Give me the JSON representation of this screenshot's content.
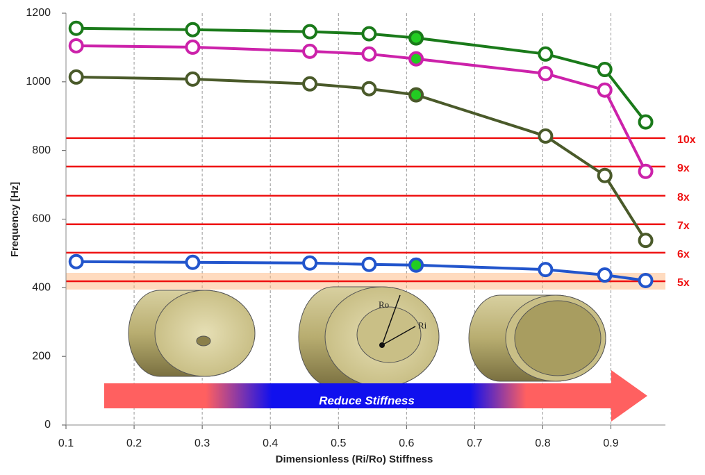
{
  "chart_data": {
    "type": "line",
    "x_label": "Dimensionless (Ri/Ro) Stiffness",
    "y_label": "Frequency [Hz]",
    "x": [
      0.115,
      0.286,
      0.458,
      0.545,
      0.614,
      0.804,
      0.891,
      0.951
    ],
    "series": [
      {
        "color": "#1a7a1a",
        "values": [
          1156,
          1152,
          1146,
          1140,
          1128,
          1081,
          1036,
          883
        ]
      },
      {
        "color": "#cc22aa",
        "values": [
          1105,
          1101,
          1089,
          1081,
          1067,
          1024,
          976,
          739
        ]
      },
      {
        "color": "#4a5a2a",
        "values": [
          1014,
          1008,
          994,
          980,
          962,
          842,
          727,
          538
        ]
      },
      {
        "color": "#2255cc",
        "values": [
          476,
          474,
          472,
          468,
          466,
          453,
          437,
          421
        ]
      }
    ],
    "reference_lines": [
      {
        "label": "10x",
        "value": 836
      },
      {
        "label": "9x",
        "value": 753
      },
      {
        "label": "8x",
        "value": 668
      },
      {
        "label": "7x",
        "value": 585
      },
      {
        "label": "6x",
        "value": 502
      },
      {
        "label": "5x",
        "value": 419
      }
    ],
    "reference_color": "#ee1111",
    "xlim": [
      0.1,
      0.98
    ],
    "xticks": [
      0.1,
      0.2,
      0.3,
      0.4,
      0.5,
      0.6,
      0.7,
      0.8,
      0.9
    ],
    "ylim": [
      0,
      1200
    ],
    "yticks": [
      0,
      200,
      400,
      600,
      800,
      1000,
      1200
    ],
    "grid": true,
    "annotations": {
      "arrow": "Reduce Stiffness",
      "outer_radius": "Ro",
      "inner_radius": "Ri"
    }
  }
}
